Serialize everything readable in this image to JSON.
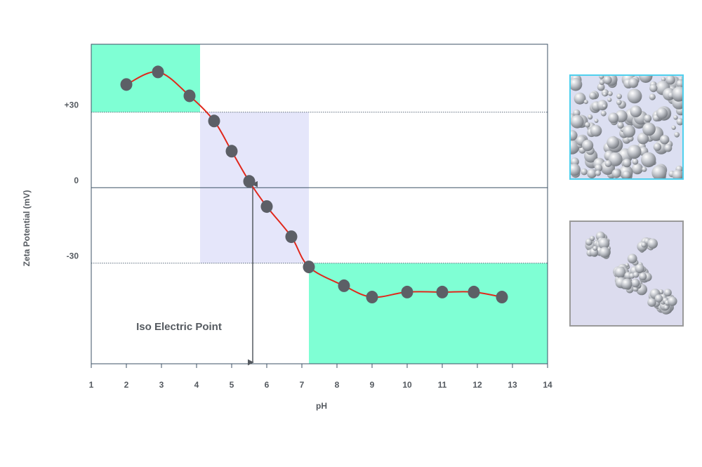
{
  "chart_data": {
    "type": "line",
    "xlabel": "pH",
    "ylabel": "Zeta Potential (mV)",
    "xlim": [
      1,
      14
    ],
    "ylim": [
      -70,
      57
    ],
    "x_ticks": [
      1,
      2,
      3,
      4,
      5,
      6,
      7,
      8,
      9,
      10,
      11,
      12,
      13,
      14
    ],
    "y_tick_labels": [
      {
        "value": 30,
        "label": "+30"
      },
      {
        "value": 0,
        "label": "0"
      },
      {
        "value": -30,
        "label": "-30"
      }
    ],
    "series": [
      {
        "points": [
          [
            2.0,
            41
          ],
          [
            2.9,
            46
          ],
          [
            3.8,
            36.5
          ],
          [
            4.5,
            26.5
          ],
          [
            5.0,
            14.5
          ],
          [
            5.5,
            2.5
          ],
          [
            6.0,
            -7.5
          ],
          [
            6.7,
            -19.5
          ],
          [
            7.2,
            -31.5
          ],
          [
            8.2,
            -39
          ],
          [
            9.0,
            -43.5
          ],
          [
            10.0,
            -41.5
          ],
          [
            11.0,
            -41.5
          ],
          [
            11.9,
            -41.5
          ],
          [
            12.7,
            -43.5
          ]
        ],
        "marker_color": "#5c5f66",
        "line_color": "#e0281c"
      }
    ],
    "shaded_regions": [
      {
        "x": [
          1,
          4.1
        ],
        "y": [
          30,
          57
        ],
        "color": "#7fffd4"
      },
      {
        "x": [
          4.1,
          7.2
        ],
        "y": [
          -30,
          30
        ],
        "color": "#e5e6fa"
      },
      {
        "x": [
          7.2,
          14
        ],
        "y": [
          -70,
          -30
        ],
        "color": "#7fffd4"
      }
    ],
    "reference_lines": [
      {
        "y": 30,
        "style": "dotted"
      },
      {
        "y": 0,
        "style": "solid"
      },
      {
        "y": -30,
        "style": "dotted"
      }
    ],
    "annotation": {
      "text": "Iso Electric Point",
      "x": 5.6,
      "y_from": 2.5,
      "y_to": -70
    },
    "grid": false,
    "legend": "none"
  },
  "panels": {
    "dispersed": {
      "border_color": "#4fd0ee"
    },
    "aggregated": {
      "border_color": "#9a9a9a"
    }
  }
}
